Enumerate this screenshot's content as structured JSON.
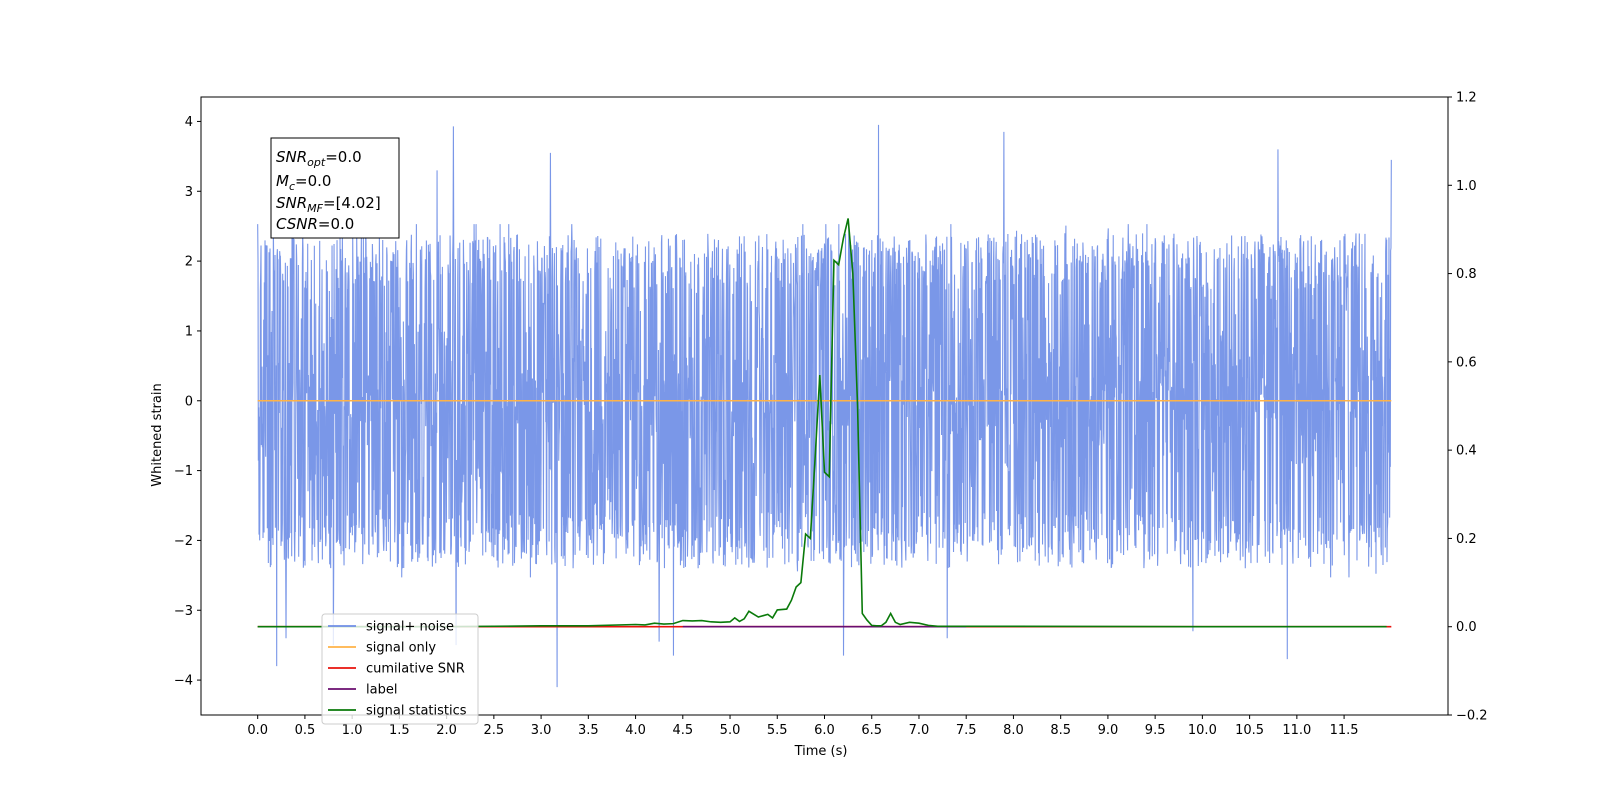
{
  "chart_data": {
    "type": "line",
    "xlabel": "Time (s)",
    "ylabel": "Whitened strain",
    "xlim": [
      -0.6,
      12.6
    ],
    "ylim": [
      -4.5,
      4.35
    ],
    "y2lim": [
      -0.2,
      1.2
    ],
    "x_ticks": [
      "0.0",
      "0.5",
      "1.0",
      "1.5",
      "2.0",
      "2.5",
      "3.0",
      "3.5",
      "4.0",
      "4.5",
      "5.0",
      "5.5",
      "6.0",
      "6.5",
      "7.0",
      "7.5",
      "8.0",
      "8.5",
      "9.0",
      "9.5",
      "10.0",
      "10.5",
      "11.0",
      "11.5"
    ],
    "y_ticks": [
      "4",
      "3",
      "2",
      "1",
      "0",
      "−1",
      "−2",
      "−3",
      "−4"
    ],
    "y2_ticks": [
      "1.2",
      "1.0",
      "0.8",
      "0.6",
      "0.4",
      "0.2",
      "0.0",
      "−0.2"
    ],
    "grid": false,
    "legend_position": "lower-left",
    "annotation": {
      "snr_opt": "=0.0",
      "mc": "=0.0",
      "snr_mf": "=[4.02]",
      "csnr": "=0.0"
    },
    "series": [
      {
        "name": "signal+ noise",
        "color": "#6f8ee6",
        "axis": "left",
        "kind": "noise",
        "x_range": [
          0.0,
          12.0
        ],
        "amplitude_typical": 2.3,
        "peaks": [
          {
            "x": 0.2,
            "y": -3.8
          },
          {
            "x": 0.3,
            "y": -3.4
          },
          {
            "x": 0.8,
            "y": -3.5
          },
          {
            "x": 2.07,
            "y": 3.93
          },
          {
            "x": 1.9,
            "y": 3.3
          },
          {
            "x": 2.1,
            "y": -3.5
          },
          {
            "x": 3.17,
            "y": -4.1
          },
          {
            "x": 3.1,
            "y": 3.55
          },
          {
            "x": 4.25,
            "y": -3.45
          },
          {
            "x": 4.4,
            "y": -3.65
          },
          {
            "x": 6.2,
            "y": -3.65
          },
          {
            "x": 6.57,
            "y": 3.95
          },
          {
            "x": 7.3,
            "y": -3.4
          },
          {
            "x": 7.9,
            "y": 3.85
          },
          {
            "x": 9.9,
            "y": -3.3
          },
          {
            "x": 10.9,
            "y": -3.7
          },
          {
            "x": 10.8,
            "y": 3.6
          },
          {
            "x": 12.0,
            "y": 3.45
          }
        ]
      },
      {
        "name": "signal only",
        "color": "#ffb347",
        "axis": "left",
        "x": [
          0.0,
          12.0
        ],
        "y": [
          0.0,
          0.0
        ]
      },
      {
        "name": "cumilative SNR",
        "color": "#e8120c",
        "axis": "right",
        "x": [
          0.0,
          12.0
        ],
        "y": [
          0.0,
          0.0
        ]
      },
      {
        "name": "label",
        "color": "#6a0d6f",
        "axis": "right",
        "x": [
          4.5,
          7.5
        ],
        "y": [
          0.0,
          0.0
        ]
      },
      {
        "name": "signal statistics",
        "color": "#0a7a0a",
        "axis": "right",
        "x": [
          0.0,
          1.0,
          2.0,
          3.0,
          3.5,
          4.0,
          4.1,
          4.2,
          4.3,
          4.4,
          4.5,
          4.6,
          4.7,
          4.8,
          4.9,
          5.0,
          5.05,
          5.1,
          5.15,
          5.2,
          5.3,
          5.4,
          5.45,
          5.5,
          5.6,
          5.65,
          5.7,
          5.75,
          5.8,
          5.85,
          5.9,
          5.95,
          6.0,
          6.05,
          6.1,
          6.15,
          6.2,
          6.25,
          6.3,
          6.35,
          6.4,
          6.45,
          6.5,
          6.55,
          6.6,
          6.65,
          6.7,
          6.75,
          6.8,
          6.9,
          7.0,
          7.1,
          7.2,
          8.0,
          10.0,
          11.95
        ],
        "y": [
          0.0,
          0.0,
          0.0,
          0.002,
          0.002,
          0.005,
          0.004,
          0.008,
          0.006,
          0.007,
          0.014,
          0.013,
          0.014,
          0.011,
          0.01,
          0.011,
          0.02,
          0.012,
          0.018,
          0.035,
          0.022,
          0.028,
          0.02,
          0.038,
          0.04,
          0.06,
          0.09,
          0.1,
          0.21,
          0.2,
          0.38,
          0.57,
          0.35,
          0.34,
          0.83,
          0.82,
          0.88,
          0.925,
          0.8,
          0.5,
          0.03,
          0.015,
          0.003,
          0.002,
          0.002,
          0.01,
          0.03,
          0.01,
          0.005,
          0.01,
          0.008,
          0.003,
          0.001,
          0.001,
          0.0,
          0.0
        ]
      }
    ]
  }
}
